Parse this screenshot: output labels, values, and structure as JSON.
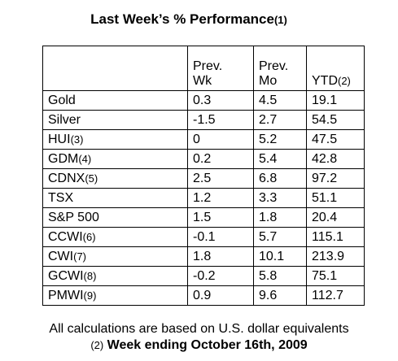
{
  "title": {
    "main": "Last Week’s % Performance",
    "note": "(1)"
  },
  "table": {
    "headers": [
      {
        "line1": "",
        "line2": ""
      },
      {
        "line1": "Prev.",
        "line2": "Wk"
      },
      {
        "line1": "Prev.",
        "line2": "Mo"
      },
      {
        "line1": "",
        "line2": "YTD",
        "note": "(2)"
      }
    ],
    "rows": [
      {
        "name": "Gold",
        "note": "",
        "wk": "0.3",
        "mo": "4.5",
        "ytd": "19.1"
      },
      {
        "name": "Silver",
        "note": "",
        "wk": "-1.5",
        "mo": "2.7",
        "ytd": "54.5"
      },
      {
        "name": "HUI",
        "note": "(3)",
        "wk": "0",
        "mo": "5.2",
        "ytd": "47.5"
      },
      {
        "name": "GDM",
        "note": "(4)",
        "wk": "0.2",
        "mo": "5.4",
        "ytd": "42.8"
      },
      {
        "name": "CDNX",
        "note": "(5)",
        "wk": "2.5",
        "mo": "6.8",
        "ytd": "97.2"
      },
      {
        "name": "TSX",
        "note": "",
        "wk": "1.2",
        "mo": "3.3",
        "ytd": "51.1"
      },
      {
        "name": "S&P 500",
        "note": "",
        "wk": "1.5",
        "mo": "1.8",
        "ytd": "20.4"
      },
      {
        "name": "CCWI",
        "note": "(6)",
        "wk": "-0.1",
        "mo": "5.7",
        "ytd": "115.1"
      },
      {
        "name": "CWI",
        "note": "(7)",
        "wk": "1.8",
        "mo": "10.1",
        "ytd": "213.9"
      },
      {
        "name": "GCWI",
        "note": "(8)",
        "wk": "-0.2",
        "mo": "5.8",
        "ytd": "75.1"
      },
      {
        "name": "PMWI",
        "note": "(9)",
        "wk": "0.9",
        "mo": "9.6",
        "ytd": "112.7"
      }
    ]
  },
  "footer": {
    "line1": "All calculations are based on U.S. dollar equivalents",
    "note": "(2)",
    "line2": "Week ending October 16th, 2009"
  }
}
